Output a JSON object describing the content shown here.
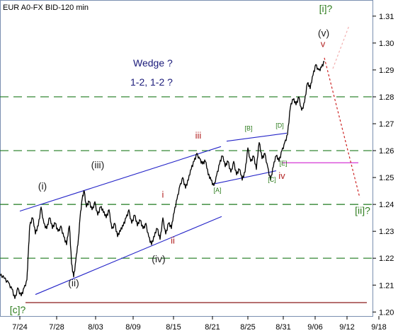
{
  "chart_data": {
    "type": "line",
    "title": "EUR A0-FX BID-120 min",
    "annotation_lines": [
      "Wedge ?",
      "1-2, 1-2 ?"
    ],
    "x_tick_labels": [
      "7/24",
      "7/28",
      "8/03",
      "8/09",
      "8/15",
      "8/21",
      "8/25",
      "8/31",
      "9/06",
      "9/12",
      "9/18"
    ],
    "y_tick_labels": [
      "1.31",
      "1.30",
      "1.29",
      "1.28",
      "1.27",
      "1.26",
      "1.25",
      "1.24",
      "1.23",
      "1.22",
      "1.21",
      "1.20"
    ],
    "ylim": [
      1.1985,
      1.316
    ],
    "x_tick_index": [
      8,
      60,
      115,
      168,
      225,
      280,
      330,
      380,
      425,
      470,
      515
    ],
    "x_range_index": [
      0,
      562
    ],
    "series": [
      {
        "values": [
          [
            0,
            1.2135
          ],
          [
            6,
            1.2125
          ],
          [
            12,
            1.211
          ],
          [
            17,
            1.2085
          ],
          [
            21,
            1.205
          ],
          [
            25,
            1.209
          ],
          [
            30,
            1.206
          ],
          [
            34,
            1.209
          ],
          [
            38,
            1.212
          ],
          [
            40,
            1.222
          ],
          [
            42,
            1.232
          ],
          [
            46,
            1.235
          ],
          [
            50,
            1.229
          ],
          [
            54,
            1.232
          ],
          [
            58,
            1.239
          ],
          [
            62,
            1.233
          ],
          [
            66,
            1.231
          ],
          [
            70,
            1.235
          ],
          [
            74,
            1.231
          ],
          [
            78,
            1.233
          ],
          [
            82,
            1.23
          ],
          [
            86,
            1.232
          ],
          [
            90,
            1.228
          ],
          [
            94,
            1.225
          ],
          [
            98,
            1.232
          ],
          [
            101,
            1.218
          ],
          [
            104,
            1.213
          ],
          [
            107,
            1.219
          ],
          [
            110,
            1.225
          ],
          [
            113,
            1.235
          ],
          [
            116,
            1.242
          ],
          [
            119,
            1.245
          ],
          [
            122,
            1.239
          ],
          [
            126,
            1.241
          ],
          [
            130,
            1.238
          ],
          [
            134,
            1.241
          ],
          [
            138,
            1.236
          ],
          [
            142,
            1.239
          ],
          [
            146,
            1.237
          ],
          [
            150,
            1.235
          ],
          [
            154,
            1.238
          ],
          [
            158,
            1.231
          ],
          [
            162,
            1.233
          ],
          [
            166,
            1.228
          ],
          [
            170,
            1.23
          ],
          [
            174,
            1.232
          ],
          [
            178,
            1.235
          ],
          [
            182,
            1.238
          ],
          [
            186,
            1.233
          ],
          [
            190,
            1.236
          ],
          [
            194,
            1.232
          ],
          [
            198,
            1.234
          ],
          [
            202,
            1.231
          ],
          [
            206,
            1.233
          ],
          [
            210,
            1.228
          ],
          [
            214,
            1.225
          ],
          [
            218,
            1.228
          ],
          [
            222,
            1.231
          ],
          [
            226,
            1.227
          ],
          [
            230,
            1.235
          ],
          [
            234,
            1.229
          ],
          [
            238,
            1.233
          ],
          [
            242,
            1.231
          ],
          [
            246,
            1.237
          ],
          [
            250,
            1.242
          ],
          [
            254,
            1.247
          ],
          [
            258,
            1.25
          ],
          [
            262,
            1.246
          ],
          [
            266,
            1.249
          ],
          [
            270,
            1.253
          ],
          [
            274,
            1.256
          ],
          [
            278,
            1.259
          ],
          [
            282,
            1.257
          ],
          [
            286,
            1.255
          ],
          [
            290,
            1.256
          ],
          [
            294,
            1.251
          ],
          [
            298,
            1.249
          ],
          [
            302,
            1.247
          ],
          [
            306,
            1.251
          ],
          [
            310,
            1.255
          ],
          [
            314,
            1.258
          ],
          [
            318,
            1.254
          ],
          [
            322,
            1.256
          ],
          [
            326,
            1.252
          ],
          [
            330,
            1.256
          ],
          [
            334,
            1.251
          ],
          [
            338,
            1.253
          ],
          [
            342,
            1.249
          ],
          [
            346,
            1.252
          ],
          [
            350,
            1.261
          ],
          [
            354,
            1.256
          ],
          [
            358,
            1.258
          ],
          [
            362,
            1.253
          ],
          [
            366,
            1.263
          ],
          [
            370,
            1.257
          ],
          [
            374,
            1.259
          ],
          [
            378,
            1.254
          ],
          [
            382,
            1.249
          ],
          [
            386,
            1.254
          ],
          [
            390,
            1.258
          ],
          [
            394,
            1.256
          ],
          [
            398,
            1.26
          ],
          [
            402,
            1.263
          ],
          [
            406,
            1.266
          ],
          [
            410,
            1.276
          ],
          [
            414,
            1.279
          ],
          [
            418,
            1.277
          ],
          [
            422,
            1.28
          ],
          [
            426,
            1.275
          ],
          [
            430,
            1.278
          ],
          [
            434,
            1.285
          ],
          [
            438,
            1.283
          ],
          [
            442,
            1.288
          ],
          [
            446,
            1.292
          ],
          [
            450,
            1.29
          ],
          [
            454,
            1.291
          ],
          [
            458,
            1.293
          ]
        ]
      }
    ],
    "level_lines": [
      1.28,
      1.26,
      1.24,
      1.22
    ],
    "support_line": 1.2035,
    "wave_labels": [
      {
        "text": "[i]?",
        "x": 460,
        "y": 1.3115,
        "color": "#2e7d1e",
        "size": 14
      },
      {
        "text": "(v)",
        "x": 457,
        "y": 1.3025,
        "color": "#222222",
        "size": 14
      },
      {
        "text": "v",
        "x": 456,
        "y": 1.2985,
        "color": "#b22222",
        "size": 13
      },
      {
        "text": "(iii)",
        "x": 138,
        "y": 1.2535,
        "color": "#222222",
        "size": 14
      },
      {
        "text": "(i)",
        "x": 60,
        "y": 1.2455,
        "color": "#222222",
        "size": 14
      },
      {
        "text": "(ii)",
        "x": 104,
        "y": 1.2095,
        "color": "#222222",
        "size": 14
      },
      {
        "text": "(iv)",
        "x": 224,
        "y": 1.2185,
        "color": "#222222",
        "size": 14
      },
      {
        "text": "iii",
        "x": 280,
        "y": 1.2645,
        "color": "#b22222",
        "size": 13
      },
      {
        "text": "i",
        "x": 230,
        "y": 1.2425,
        "color": "#b22222",
        "size": 13
      },
      {
        "text": "ii",
        "x": 244,
        "y": 1.2255,
        "color": "#b22222",
        "size": 13
      },
      {
        "text": "iv",
        "x": 398,
        "y": 1.2495,
        "color": "#b22222",
        "size": 13
      },
      {
        "text": "[B]",
        "x": 351,
        "y": 1.2675,
        "color": "#2e7d1e",
        "size": 9
      },
      {
        "text": "[D]",
        "x": 395,
        "y": 1.2685,
        "color": "#2e7d1e",
        "size": 9
      },
      {
        "text": "[E]",
        "x": 400,
        "y": 1.2545,
        "color": "#2e7d1e",
        "size": 9
      },
      {
        "text": "[A]",
        "x": 307,
        "y": 1.2445,
        "color": "#2e7d1e",
        "size": 9
      },
      {
        "text": "[C]",
        "x": 384,
        "y": 1.2485,
        "color": "#2e7d1e",
        "size": 9
      },
      {
        "text": "[ii]?",
        "x": 512,
        "y": 1.2365,
        "color": "#2e7d1e",
        "size": 14
      },
      {
        "text": "[c]?",
        "x": 25,
        "y": 1.1995,
        "color": "#2e7d1e",
        "size": 14
      }
    ],
    "trend_lines": [
      {
        "x1": 28,
        "y1": 1.2375,
        "x2": 312,
        "y2": 1.2615,
        "color": "#2424c8"
      },
      {
        "x1": 50,
        "y1": 1.2065,
        "x2": 313,
        "y2": 1.2355,
        "color": "#2424c8"
      },
      {
        "x1": 320,
        "y1": 1.2635,
        "x2": 405,
        "y2": 1.2665,
        "color": "#2424c8"
      },
      {
        "x1": 300,
        "y1": 1.2475,
        "x2": 390,
        "y2": 1.2525,
        "color": "#2424c8"
      },
      {
        "x1": 398,
        "y1": 1.2555,
        "x2": 506,
        "y2": 1.2555,
        "color": "#d020d0"
      }
    ],
    "projection_lines": [
      {
        "x1": 458,
        "y1": 1.2945,
        "x2": 508,
        "y2": 1.2425,
        "color": "#cc2222"
      },
      {
        "x1": 470,
        "y1": 1.2905,
        "x2": 493,
        "y2": 1.3065,
        "color": "#f2b0b0"
      }
    ],
    "colors": {
      "price": "#000000",
      "levels": "#1e7a1e",
      "support": "#8b1a1a",
      "frame": "#7a8fb0",
      "annotation": "#1a1a7a"
    }
  }
}
